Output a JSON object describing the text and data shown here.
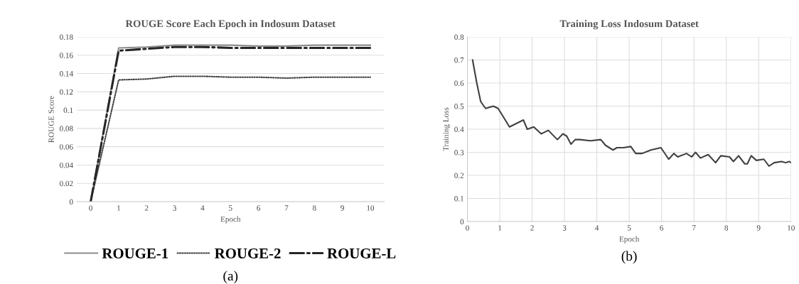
{
  "chart_data": [
    {
      "type": "line",
      "title": "ROUGE Score Each Epoch in Indosum Dataset",
      "xlabel": "Epoch",
      "ylabel": "ROUGE Score",
      "categories": [
        "0",
        "1",
        "2",
        "3",
        "4",
        "5",
        "6",
        "7",
        "8",
        "9",
        "10"
      ],
      "series": [
        {
          "name": "ROUGE-1",
          "color": "#8c8c8c",
          "line_style": "solid",
          "values": [
            0,
            0.168,
            0.169,
            0.171,
            0.171,
            0.171,
            0.17,
            0.17,
            0.171,
            0.171,
            0.171
          ]
        },
        {
          "name": "ROUGE-2",
          "color": "#404040",
          "line_style": "dotted",
          "values": [
            0,
            0.133,
            0.134,
            0.137,
            0.137,
            0.136,
            0.136,
            0.135,
            0.136,
            0.136,
            0.136
          ]
        },
        {
          "name": "ROUGE-L",
          "color": "#262626",
          "line_style": "dashdot",
          "values": [
            0,
            0.165,
            0.167,
            0.169,
            0.169,
            0.168,
            0.168,
            0.168,
            0.168,
            0.168,
            0.168
          ]
        }
      ],
      "ylim": [
        0,
        0.18
      ],
      "yticks": [
        0,
        0.02,
        0.04,
        0.06,
        0.08,
        0.1,
        0.12,
        0.14,
        0.16,
        0.18
      ],
      "grid": "y",
      "legend": "bottom",
      "annotations": [
        "(a)"
      ]
    },
    {
      "type": "line",
      "title": "Training Loss Indosum Dataset",
      "xlabel": "Epoch",
      "ylabel": "Training Loss",
      "x": [
        0.16,
        0.29,
        0.41,
        0.56,
        0.8,
        0.95,
        1.3,
        1.73,
        1.85,
        2.05,
        2.28,
        2.5,
        2.78,
        2.95,
        3.07,
        3.2,
        3.33,
        3.48,
        3.8,
        4.12,
        4.27,
        4.5,
        4.62,
        4.82,
        5.05,
        5.2,
        5.4,
        5.67,
        5.98,
        6.22,
        6.38,
        6.5,
        6.77,
        6.93,
        7.05,
        7.2,
        7.44,
        7.67,
        7.83,
        8.1,
        8.22,
        8.38,
        8.57,
        8.65,
        8.77,
        8.93,
        9.16,
        9.32,
        9.48,
        9.71,
        9.83,
        9.95,
        10
      ],
      "series": [
        {
          "color": "#404040",
          "line_style": "solid",
          "values": [
            0.7,
            0.6,
            0.52,
            0.49,
            0.5,
            0.49,
            0.41,
            0.44,
            0.4,
            0.41,
            0.38,
            0.395,
            0.355,
            0.38,
            0.37,
            0.335,
            0.355,
            0.355,
            0.35,
            0.355,
            0.33,
            0.31,
            0.32,
            0.32,
            0.325,
            0.295,
            0.295,
            0.31,
            0.32,
            0.27,
            0.295,
            0.28,
            0.295,
            0.28,
            0.3,
            0.275,
            0.29,
            0.255,
            0.285,
            0.28,
            0.26,
            0.285,
            0.25,
            0.25,
            0.285,
            0.265,
            0.27,
            0.24,
            0.255,
            0.26,
            0.255,
            0.26,
            0.255
          ]
        }
      ],
      "xlim": [
        0,
        10
      ],
      "xticks": [
        0,
        1,
        2,
        3,
        4,
        5,
        6,
        7,
        8,
        9,
        10
      ],
      "ylim": [
        0,
        0.8
      ],
      "yticks": [
        0,
        0.1,
        0.2,
        0.3,
        0.4,
        0.5,
        0.6,
        0.7,
        0.8
      ],
      "grid": true,
      "annotations": [
        "(b)"
      ]
    }
  ]
}
